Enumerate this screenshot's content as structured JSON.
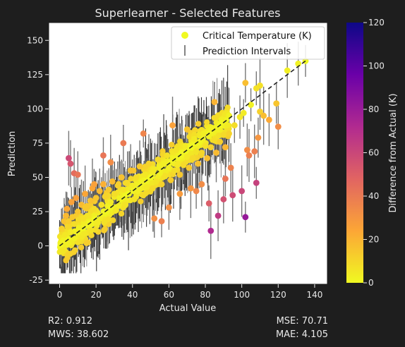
{
  "chart_data": {
    "type": "scatter",
    "title": "Superlearner - Selected Features",
    "xlabel": "Actual Value",
    "ylabel": "Prediction",
    "xlim": [
      -6,
      147
    ],
    "ylim": [
      -28,
      163
    ],
    "xticks": [
      0,
      20,
      40,
      60,
      80,
      100,
      120,
      140
    ],
    "yticks": [
      -25,
      0,
      25,
      50,
      75,
      100,
      125,
      150
    ],
    "grid": false,
    "legend_position": "upper right",
    "legend": [
      "Critical Temperature (K)",
      "Prediction Intervals"
    ],
    "reference_line": {
      "style": "dashed",
      "color": "#222222",
      "x": [
        0,
        135
      ],
      "y": [
        0,
        135
      ]
    },
    "colorbar": {
      "label": "Difference from Actual (K)",
      "min": 0,
      "max": 120,
      "ticks": [
        0,
        20,
        40,
        60,
        80,
        100,
        120
      ],
      "colormap": "plasma_r",
      "colors": [
        "#f0f921",
        "#fca636",
        "#e16462",
        "#b12a90",
        "#6a00a8",
        "#0d0887"
      ]
    },
    "interval_color": "#000000",
    "interval_highlight_color": "#777777",
    "series": [
      {
        "name": "Critical Temperature (K)",
        "points": [
          [
            0.5,
            2.0,
            1.5
          ],
          [
            1.0,
            6.0,
            5.0
          ],
          [
            1.5,
            10.0,
            8.5
          ],
          [
            1.2,
            12.5,
            11.3
          ],
          [
            2.0,
            4.0,
            2.0
          ],
          [
            2.5,
            18.0,
            15.5
          ],
          [
            3.0,
            8.0,
            5.0
          ],
          [
            3.5,
            22.0,
            18.5
          ],
          [
            4.0,
            27.0,
            23.0
          ],
          [
            4.5,
            14.0,
            9.5
          ],
          [
            5.0,
            18.0,
            13.0
          ],
          [
            6.0,
            10.0,
            4.0
          ],
          [
            6.5,
            32.0,
            25.5
          ],
          [
            7.0,
            21.0,
            14.0
          ],
          [
            8.0,
            16.0,
            8.0
          ],
          [
            9.0,
            35.0,
            26.0
          ],
          [
            10.0,
            25.0,
            15.0
          ],
          [
            10.5,
            13.0,
            2.5
          ],
          [
            12.0,
            30.0,
            18.0
          ],
          [
            13.0,
            20.0,
            7.0
          ],
          [
            14.0,
            38.0,
            24.0
          ],
          [
            15.0,
            29.0,
            14.0
          ],
          [
            16.0,
            22.0,
            6.0
          ],
          [
            17.0,
            33.0,
            16.0
          ],
          [
            18.0,
            42.0,
            24.0
          ],
          [
            19.0,
            27.0,
            8.0
          ],
          [
            20.0,
            35.0,
            15.0
          ],
          [
            21.0,
            17.0,
            4.0
          ],
          [
            22.0,
            40.0,
            18.0
          ],
          [
            23.0,
            30.0,
            7.0
          ],
          [
            24.0,
            45.0,
            21.0
          ],
          [
            25.0,
            36.0,
            11.0
          ],
          [
            26.0,
            25.0,
            1.0
          ],
          [
            27.0,
            41.0,
            14.0
          ],
          [
            28.0,
            32.0,
            4.0
          ],
          [
            29.0,
            47.0,
            18.0
          ],
          [
            30.0,
            38.0,
            8.0
          ],
          [
            31.0,
            26.0,
            5.0
          ],
          [
            32.0,
            44.0,
            12.0
          ],
          [
            33.0,
            35.0,
            2.0
          ],
          [
            34.0,
            50.0,
            16.0
          ],
          [
            35.0,
            41.0,
            6.0
          ],
          [
            36.0,
            30.0,
            6.0
          ],
          [
            37.0,
            46.0,
            9.0
          ],
          [
            38.0,
            38.0,
            0.0
          ],
          [
            39.0,
            55.0,
            16.0
          ],
          [
            40.0,
            44.0,
            4.0
          ],
          [
            41.0,
            34.0,
            7.0
          ],
          [
            42.0,
            50.0,
            8.0
          ],
          [
            43.0,
            40.0,
            3.0
          ],
          [
            44.0,
            58.0,
            14.0
          ],
          [
            45.0,
            47.0,
            2.0
          ],
          [
            46.0,
            37.0,
            9.0
          ],
          [
            47.0,
            52.0,
            5.0
          ],
          [
            48.0,
            43.0,
            5.0
          ],
          [
            49.0,
            60.0,
            11.0
          ],
          [
            50.0,
            50.0,
            0.0
          ],
          [
            51.0,
            42.0,
            9.0
          ],
          [
            52.0,
            56.0,
            4.0
          ],
          [
            53.0,
            47.0,
            6.0
          ],
          [
            54.0,
            63.0,
            9.0
          ],
          [
            55.0,
            53.0,
            2.0
          ],
          [
            56.0,
            45.0,
            11.0
          ],
          [
            57.0,
            60.0,
            3.0
          ],
          [
            58.0,
            51.0,
            7.0
          ],
          [
            59.0,
            66.0,
            7.0
          ],
          [
            60.0,
            57.0,
            3.0
          ],
          [
            61.0,
            48.0,
            13.0
          ],
          [
            62.0,
            64.0,
            2.0
          ],
          [
            63.0,
            55.0,
            8.0
          ],
          [
            64.0,
            70.0,
            6.0
          ],
          [
            65.0,
            60.0,
            5.0
          ],
          [
            66.0,
            52.0,
            14.0
          ],
          [
            67.0,
            68.0,
            1.0
          ],
          [
            68.0,
            59.0,
            9.0
          ],
          [
            69.0,
            73.0,
            4.0
          ],
          [
            70.0,
            65.0,
            5.0
          ],
          [
            71.0,
            57.0,
            14.0
          ],
          [
            72.0,
            72.0,
            0.0
          ],
          [
            73.0,
            64.0,
            9.0
          ],
          [
            74.0,
            78.0,
            4.0
          ],
          [
            75.0,
            69.0,
            6.0
          ],
          [
            76.0,
            60.0,
            16.0
          ],
          [
            77.0,
            76.0,
            1.0
          ],
          [
            78.0,
            68.0,
            10.0
          ],
          [
            79.0,
            82.0,
            3.0
          ],
          [
            80.0,
            73.0,
            7.0
          ],
          [
            81.0,
            64.0,
            17.0
          ],
          [
            82.0,
            80.0,
            2.0
          ],
          [
            83.0,
            72.0,
            11.0
          ],
          [
            84.0,
            86.0,
            2.0
          ],
          [
            85.0,
            77.0,
            8.0
          ],
          [
            86.0,
            68.0,
            18.0
          ],
          [
            87.0,
            85.0,
            2.0
          ],
          [
            88.0,
            76.0,
            12.0
          ],
          [
            89.0,
            90.0,
            1.0
          ],
          [
            90.0,
            81.0,
            9.0
          ],
          [
            91.0,
            72.0,
            19.0
          ],
          [
            92.0,
            88.0,
            4.0
          ],
          [
            93.0,
            95.0,
            2.0
          ],
          [
            62.0,
            88.0,
            26.0
          ],
          [
            66.0,
            38.0,
            28.0
          ],
          [
            70.0,
            85.0,
            15.0
          ],
          [
            75.0,
            40.0,
            35.0
          ],
          [
            78.0,
            45.0,
            33.0
          ],
          [
            82.0,
            31.0,
            51.0
          ],
          [
            83.0,
            11.0,
            72.0
          ],
          [
            87.0,
            22.0,
            65.0
          ],
          [
            90.0,
            34.0,
            56.0
          ],
          [
            91.0,
            49.0,
            42.0
          ],
          [
            95.0,
            37.0,
            58.0
          ],
          [
            94.0,
            57.0,
            37.0
          ],
          [
            100.0,
            40.0,
            60.0
          ],
          [
            102.0,
            21.0,
            81.0
          ],
          [
            103.0,
            70.0,
            33.0
          ],
          [
            104.0,
            66.0,
            38.0
          ],
          [
            108.0,
            46.0,
            62.0
          ],
          [
            109.0,
            79.0,
            30.0
          ],
          [
            107.0,
            69.0,
            38.0
          ],
          [
            110.0,
            98.0,
            12.0
          ],
          [
            110.0,
            117.0,
            7.0
          ],
          [
            108.0,
            115.0,
            7.0
          ],
          [
            112.0,
            95.0,
            17.0
          ],
          [
            115.0,
            92.0,
            23.0
          ],
          [
            119.0,
            104.0,
            15.0
          ],
          [
            120.0,
            87.0,
            33.0
          ],
          [
            102.0,
            119.0,
            17.0
          ],
          [
            125.0,
            128.0,
            3.0
          ],
          [
            131.0,
            133.0,
            2.0
          ],
          [
            135.0,
            135.0,
            0.0
          ],
          [
            93.0,
            82.0,
            11.0
          ],
          [
            96.0,
            88.0,
            8.0
          ],
          [
            99.0,
            94.0,
            5.0
          ],
          [
            101.0,
            97.0,
            4.0
          ],
          [
            105.0,
            103.0,
            2.0
          ],
          [
            5.0,
            64.0,
            59.0
          ],
          [
            6.0,
            60.0,
            54.0
          ],
          [
            8.0,
            53.0,
            45.0
          ],
          [
            10.0,
            52.0,
            42.0
          ],
          [
            19.0,
            45.0,
            26.0
          ],
          [
            24.0,
            66.0,
            42.0
          ],
          [
            14.0,
            28.0,
            14.0
          ],
          [
            28.0,
            61.0,
            33.0
          ],
          [
            35.0,
            75.0,
            40.0
          ],
          [
            46.0,
            82.0,
            36.0
          ],
          [
            52.0,
            20.0,
            32.0
          ],
          [
            56.0,
            18.0,
            38.0
          ],
          [
            60.0,
            28.0,
            32.0
          ],
          [
            72.0,
            42.0,
            30.0
          ],
          [
            85.0,
            105.0,
            20.0
          ]
        ]
      }
    ]
  },
  "metrics": {
    "r2": "R2: 0.912",
    "mws": "MWS: 38.602",
    "mse": "MSE: 70.71",
    "mae": "MAE: 4.105"
  }
}
